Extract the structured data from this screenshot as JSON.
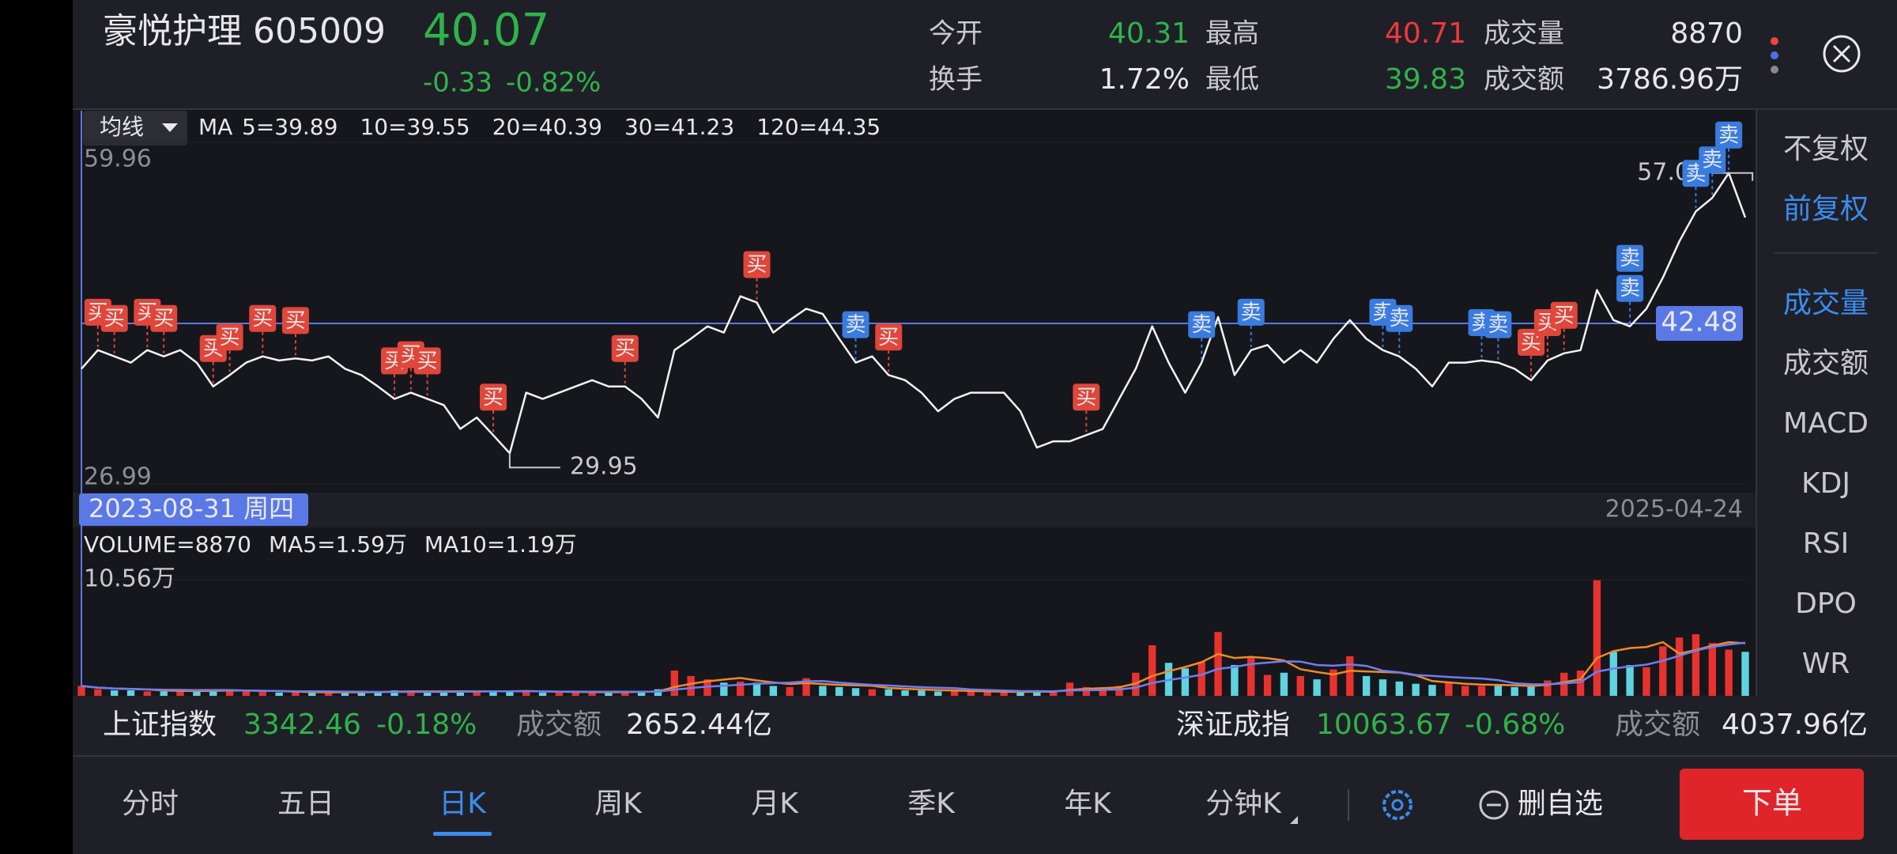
{
  "header": {
    "name": "豪悦护理 605009",
    "price": "40.07",
    "change": "-0.33",
    "change_percent": "-0.82%",
    "stats": [
      {
        "label": "今开",
        "value": "40.31"
      },
      {
        "label": "最高",
        "value": "40.71"
      },
      {
        "label": "成交量",
        "value": "8870"
      },
      {
        "label": "换手",
        "value": "1.72%"
      },
      {
        "label": "最低",
        "value": "39.83"
      },
      {
        "label": "成交额",
        "value": "3786.96万"
      }
    ]
  },
  "chart_data": [
    {
      "type": "line",
      "ma_label": "均线",
      "ma_prefix": "MA",
      "ma_values": [
        {
          "label": "5=39.89",
          "color": "#f0882c"
        },
        {
          "label": "10=39.55",
          "color": "#6c7ef0"
        },
        {
          "label": "20=40.39",
          "color": "#3aa8f0"
        },
        {
          "label": "30=41.23",
          "color": "#e8473e"
        },
        {
          "label": "120=44.35",
          "color": "#c33fe0"
        }
      ],
      "cursor_date": "2023-08-31 周四",
      "end_date": "2025-04-24",
      "color": "#f2f2f2",
      "values": [
        38.1,
        39.9,
        39.3,
        38.7,
        39.9,
        39.3,
        39.9,
        38.7,
        36.4,
        37.5,
        38.7,
        39.3,
        38.9,
        39.1,
        38.9,
        39.3,
        38.1,
        37.5,
        36.4,
        35.2,
        35.8,
        35.2,
        34.6,
        32.3,
        33.4,
        31.7,
        29.95,
        35.8,
        35.2,
        35.8,
        36.4,
        37.0,
        36.4,
        36.4,
        35.2,
        33.4,
        39.9,
        41.0,
        42.2,
        41.6,
        45.1,
        44.5,
        41.6,
        42.8,
        43.9,
        43.4,
        41.0,
        38.7,
        39.3,
        37.5,
        37.0,
        35.8,
        34.0,
        35.2,
        35.8,
        35.8,
        35.8,
        34.0,
        30.5,
        31.1,
        31.1,
        31.7,
        32.3,
        35.2,
        38.1,
        42.2,
        38.7,
        35.8,
        38.7,
        43.1,
        37.5,
        39.9,
        40.4,
        38.7,
        39.9,
        38.7,
        41.0,
        42.8,
        41.0,
        39.9,
        39.3,
        38.1,
        36.4,
        38.7,
        38.7,
        38.9,
        38.7,
        38.1,
        37.0,
        38.9,
        39.6,
        39.9,
        45.7,
        42.8,
        42.2,
        43.9,
        46.9,
        50.4,
        53.3,
        54.6,
        57.0,
        52.7
      ],
      "ylim": [
        26.99,
        59.96
      ],
      "yticks": [
        59.96,
        26.99
      ],
      "annotations": [
        {
          "value": 57.0,
          "label": "57.00",
          "index": 100
        },
        {
          "value": 29.95,
          "label": "29.95",
          "index": 26
        }
      ],
      "crosshair": {
        "value": 42.48,
        "label": "42.48",
        "index": 0
      },
      "markers": [
        {
          "label": "买",
          "index": 1
        },
        {
          "label": "买",
          "index": 2
        },
        {
          "label": "买",
          "index": 4
        },
        {
          "label": "买",
          "index": 5
        },
        {
          "label": "买",
          "index": 8
        },
        {
          "label": "买",
          "index": 9
        },
        {
          "label": "买",
          "index": 11
        },
        {
          "label": "买",
          "index": 13
        },
        {
          "label": "买",
          "index": 19
        },
        {
          "label": "买",
          "index": 20
        },
        {
          "label": "买",
          "index": 21
        },
        {
          "label": "买",
          "index": 25
        },
        {
          "label": "买",
          "index": 33
        },
        {
          "label": "买",
          "index": 41
        },
        {
          "label": "卖",
          "index": 47
        },
        {
          "label": "买",
          "index": 49
        },
        {
          "label": "买",
          "index": 61
        },
        {
          "label": "卖",
          "index": 68
        },
        {
          "label": "卖",
          "index": 71
        },
        {
          "label": "卖",
          "index": 79
        },
        {
          "label": "卖",
          "index": 80
        },
        {
          "label": "卖",
          "index": 85
        },
        {
          "label": "卖",
          "index": 86
        },
        {
          "label": "买",
          "index": 88
        },
        {
          "label": "买",
          "index": 89
        },
        {
          "label": "买",
          "index": 90
        },
        {
          "label": "卖",
          "index": 94
        },
        {
          "label": "卖",
          "index": 94
        },
        {
          "label": "卖",
          "index": 98
        },
        {
          "label": "卖",
          "index": 99
        },
        {
          "label": "卖",
          "index": 100
        }
      ],
      "marker_colors": {
        "买": "#e0463a",
        "卖": "#3a7be0"
      }
    },
    {
      "type": "bar",
      "legend": [
        {
          "label": "VOLUME=8870",
          "color": "#e8e8ea"
        },
        {
          "label": "MA5=1.59万",
          "color": "#f0882c"
        },
        {
          "label": "MA10=1.19万",
          "color": "#6c7ef0"
        }
      ],
      "values": [
        0.9,
        0.6,
        0.5,
        0.5,
        0.4,
        0.4,
        0.5,
        0.4,
        0.6,
        0.5,
        0.4,
        0.4,
        0.3,
        0.3,
        0.3,
        0.3,
        0.4,
        0.3,
        0.4,
        0.5,
        0.4,
        0.4,
        0.3,
        0.5,
        0.4,
        0.5,
        0.4,
        0.4,
        0.3,
        0.3,
        0.4,
        0.3,
        0.3,
        0.4,
        0.4,
        0.6,
        2.3,
        1.8,
        1.5,
        1.2,
        1.3,
        1.2,
        0.9,
        0.8,
        1.6,
        0.9,
        0.8,
        0.7,
        0.6,
        0.6,
        0.5,
        0.5,
        0.4,
        0.4,
        0.4,
        0.4,
        0.3,
        0.3,
        0.5,
        0.4,
        1.2,
        0.8,
        0.6,
        0.9,
        2.1,
        4.6,
        3.0,
        2.5,
        3.1,
        5.8,
        2.8,
        3.5,
        1.9,
        2.1,
        1.8,
        1.5,
        2.4,
        3.6,
        1.8,
        1.5,
        1.3,
        1.1,
        1.0,
        1.2,
        0.9,
        0.9,
        1.0,
        0.8,
        0.9,
        1.4,
        2.1,
        2.3,
        10.5,
        4.0,
        2.8,
        2.6,
        4.5,
        5.3,
        5.6,
        4.8,
        4.2,
        4.0
      ],
      "colors": {
        "up": "#e8322e",
        "down": "#5fd3e0"
      },
      "ylim": [
        0,
        10.56
      ],
      "yticks": [
        {
          "value": 10.56,
          "label": "10.56万"
        }
      ]
    }
  ],
  "right_panel": [
    "不复权",
    "前复权",
    "成交量",
    "成交额",
    "MACD",
    "KDJ",
    "RSI",
    "DPO",
    "WR"
  ],
  "index_bar": [
    {
      "name": "上证指数",
      "value": "3342.46",
      "change": "-0.18%",
      "turnover_label": "成交额",
      "turnover": "2652.44亿"
    },
    {
      "name": "深证成指",
      "value": "10063.67",
      "change": "-0.68%",
      "turnover_label": "成交额",
      "turnover": "4037.96亿"
    }
  ],
  "tabs": [
    "分时",
    "五日",
    "日K",
    "周K",
    "月K",
    "季K",
    "年K",
    "分钟K"
  ],
  "actions": {
    "remove": "删自选",
    "order": "下单"
  }
}
